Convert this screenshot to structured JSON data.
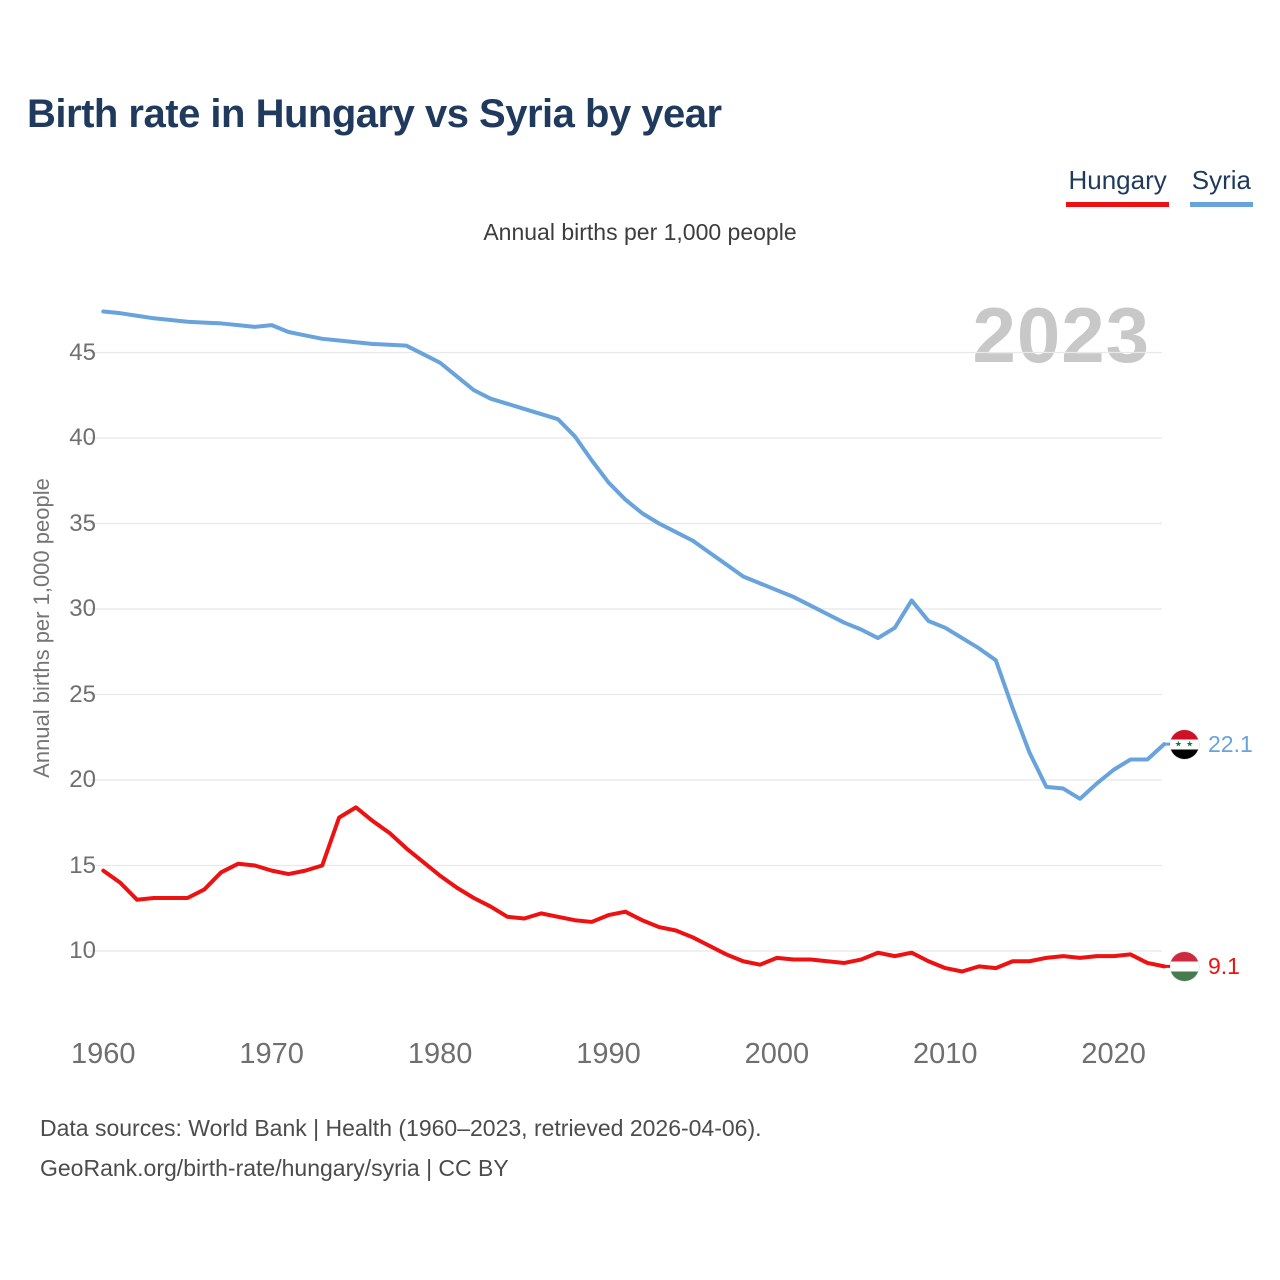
{
  "header": {
    "title": "Birth rate in Hungary vs Syria by year"
  },
  "legend": {
    "items": [
      {
        "label": "Hungary",
        "color": "#ee1111"
      },
      {
        "label": "Syria",
        "color": "#68a3dc"
      }
    ]
  },
  "subtitle": "Annual births per 1,000 people",
  "watermark": "2023",
  "y_axis_title": "Annual births per 1,000 people",
  "footer": {
    "line1": "Data sources: World Bank | Health (1960–2023, retrieved 2026-04-06).",
    "line2": "GeoRank.org/birth-rate/hungary/syria | CC BY"
  },
  "chart_data": {
    "type": "line",
    "title": "Birth rate in Hungary vs Syria by year",
    "subtitle": "Annual births per 1,000 people",
    "xlabel": "",
    "ylabel": "Annual births per 1,000 people",
    "x_start": 1960,
    "x_end": 2023,
    "x_ticks": [
      1960,
      1970,
      1980,
      1990,
      2000,
      2010,
      2020
    ],
    "y_ticks": [
      10,
      15,
      20,
      25,
      30,
      35,
      40,
      45
    ],
    "ylim": [
      8,
      48.5
    ],
    "grid": "horizontal-only",
    "legend_position": "top-right",
    "gridline_color": "#e8e8e8",
    "tick_color": "#6f6f6f",
    "watermark_color": "#c8c8c8",
    "series": [
      {
        "name": "Hungary",
        "color": "#ee1111",
        "end_label": "9.1",
        "flag": "hungary",
        "values": [
          14.7,
          14.0,
          13.0,
          13.1,
          13.1,
          13.1,
          13.6,
          14.6,
          15.1,
          15.0,
          14.7,
          14.5,
          14.7,
          15.0,
          17.8,
          18.4,
          17.6,
          16.9,
          16.0,
          15.2,
          14.4,
          13.7,
          13.1,
          12.6,
          12.0,
          11.9,
          12.2,
          12.0,
          11.8,
          11.7,
          12.1,
          12.3,
          11.8,
          11.4,
          11.2,
          10.8,
          10.3,
          9.8,
          9.4,
          9.2,
          9.6,
          9.5,
          9.5,
          9.4,
          9.3,
          9.5,
          9.9,
          9.7,
          9.9,
          9.4,
          9.0,
          8.8,
          9.1,
          9.0,
          9.4,
          9.4,
          9.6,
          9.7,
          9.6,
          9.7,
          9.7,
          9.8,
          9.3,
          9.1
        ]
      },
      {
        "name": "Syria",
        "color": "#68a3dc",
        "end_label": "22.1",
        "flag": "syria",
        "values": [
          47.4,
          47.3,
          47.15,
          47.0,
          46.9,
          46.8,
          46.75,
          46.7,
          46.6,
          46.5,
          46.6,
          46.2,
          46.0,
          45.8,
          45.7,
          45.6,
          45.5,
          45.45,
          45.4,
          44.9,
          44.4,
          43.6,
          42.8,
          42.3,
          42.0,
          41.7,
          41.4,
          41.1,
          40.1,
          38.7,
          37.4,
          36.4,
          35.6,
          35.0,
          34.5,
          34.0,
          33.3,
          32.6,
          31.9,
          31.5,
          31.1,
          30.7,
          30.2,
          29.7,
          29.2,
          28.8,
          28.3,
          28.9,
          30.5,
          29.3,
          28.9,
          28.3,
          27.7,
          27.0,
          24.2,
          21.6,
          19.6,
          19.5,
          18.9,
          19.8,
          20.6,
          21.2,
          21.2,
          22.1
        ]
      }
    ]
  }
}
